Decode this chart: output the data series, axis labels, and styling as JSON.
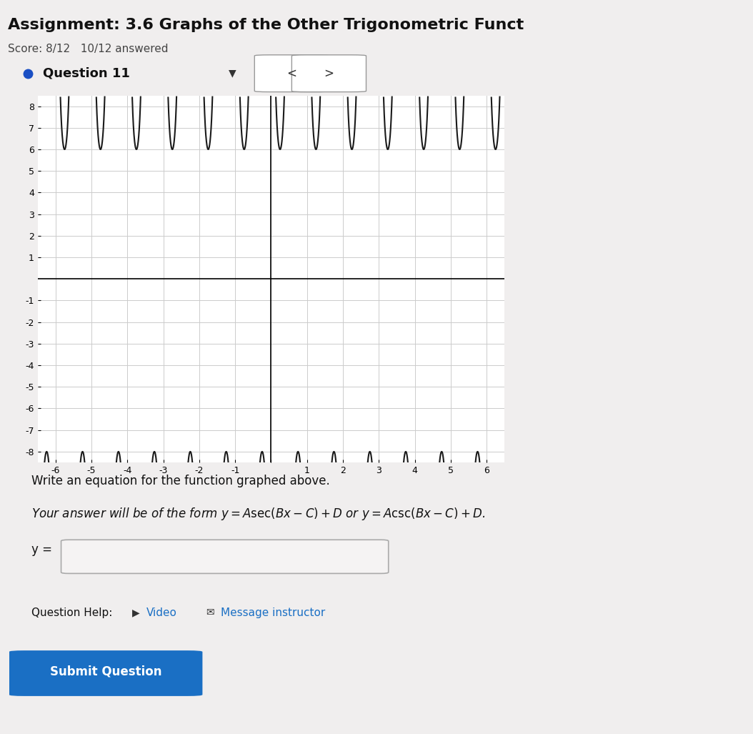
{
  "title": "Assignment: 3.6 Graphs of the Other Trigonometric Funct",
  "score_text": "Score: 8/12   10/12 answered",
  "question_label": "Question 11",
  "graph_xlim": [
    -6.5,
    6.5
  ],
  "graph_ylim": [
    -8.5,
    8.5
  ],
  "graph_xticks": [
    -6,
    -5,
    -4,
    -3,
    -2,
    -1,
    0,
    1,
    2,
    3,
    4,
    5,
    6
  ],
  "graph_yticks": [
    -8,
    -7,
    -6,
    -5,
    -4,
    -3,
    -2,
    -1,
    1,
    2,
    3,
    4,
    5,
    6,
    7,
    8
  ],
  "func_A": 7,
  "func_B": 6.2831853,
  "func_D": -1,
  "bg_color": "#f0eeee",
  "graph_bg": "#ffffff",
  "write_eq_text": "Write an equation for the function graphed above.",
  "form_text": "Your answer will be of the form $y = A\\sec(Bx - C) + D$ or $y = A\\csc(Bx - C) + D$.",
  "ylabel_text": "y =",
  "qhelp_text": "Question Help:",
  "video_text": "Video",
  "msg_text": "Message instructor",
  "submit_text": "Submit Question",
  "submit_bg": "#1a6fc4",
  "nav_arrow_left": "<",
  "nav_arrow_right": ">",
  "curve_color": "#1a1a1a",
  "grid_color": "#cccccc",
  "axis_color": "#000000",
  "left_bar_color": "#1a4fc4",
  "q11_dot_color": "#1a4fc4"
}
